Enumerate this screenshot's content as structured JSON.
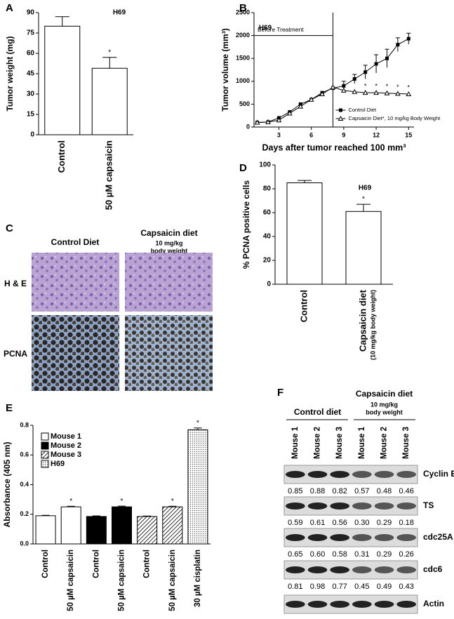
{
  "chart_data": [
    {
      "panel": "A",
      "type": "bar",
      "title": "H69",
      "y_label": "Tumor weight (mg)",
      "categories": [
        "Control",
        "50 µM capsaicin"
      ],
      "values": [
        80,
        49
      ],
      "errors": [
        7,
        8
      ],
      "markers": [
        null,
        "*"
      ],
      "color": "#ffffff",
      "ylim": [
        0,
        90
      ],
      "yticks": [
        0,
        15,
        30,
        45,
        60,
        75,
        90
      ]
    },
    {
      "panel": "B",
      "type": "line",
      "title": "H69",
      "y_label": "Tumor volume (mm³)",
      "x_label": "Days after tumor reached 100 mm³",
      "x": [
        1,
        2,
        3,
        4,
        5,
        6,
        7,
        8,
        9,
        10,
        11,
        12,
        13,
        14,
        15
      ],
      "series": [
        {
          "name": "Control Diet",
          "color": "#000000",
          "marker": "square",
          "values": [
            100,
            110,
            200,
            330,
            500,
            600,
            750,
            850,
            900,
            1050,
            1200,
            1380,
            1500,
            1800,
            1930
          ],
          "errors": [
            null,
            null,
            null,
            null,
            null,
            null,
            null,
            null,
            100,
            100,
            150,
            200,
            200,
            150,
            120
          ]
        },
        {
          "name": "Capsaicin Diet*, 10 mg/kg Body Weight",
          "color": "#000000",
          "marker": "triangle",
          "values": [
            100,
            110,
            150,
            300,
            450,
            600,
            720,
            870,
            800,
            770,
            750,
            750,
            740,
            730,
            720
          ],
          "markers": [
            null,
            null,
            null,
            null,
            null,
            null,
            null,
            null,
            null,
            null,
            "*",
            "*",
            "*",
            "*",
            "*"
          ]
        }
      ],
      "before_treatment": {
        "label": "Before Treatment",
        "x_end": 8,
        "y": 2000
      },
      "xlim": [
        0.7,
        15.5
      ],
      "xticks": [
        3,
        6,
        9,
        12,
        15
      ],
      "ylim": [
        0,
        2500
      ],
      "yticks": [
        0,
        500,
        1000,
        1500,
        2000,
        2500
      ]
    },
    {
      "panel": "D",
      "type": "bar",
      "title": "H69",
      "y_label": "% PCNA positive cells",
      "categories": [
        "Control",
        "Capsaicin diet"
      ],
      "category_sublabels": [
        null,
        "(10 mg/kg body weight)"
      ],
      "values": [
        85,
        61
      ],
      "errors": [
        2,
        6
      ],
      "markers": [
        null,
        "*"
      ],
      "color": "#ffffff",
      "ylim": [
        0,
        100
      ],
      "yticks": [
        0,
        20,
        40,
        60,
        80,
        100
      ]
    },
    {
      "panel": "E",
      "type": "bar",
      "y_label": "Absorbance (405 nm)",
      "categories": [
        "Control",
        "50 µM capsaicin",
        "Control",
        "50 µM capsaicin",
        "Control",
        "50 µM capsaicin",
        "30 µM cisplatin"
      ],
      "values": [
        0.19,
        0.25,
        0.185,
        0.25,
        0.185,
        0.25,
        0.77
      ],
      "errors": [
        0.003,
        0.004,
        0.004,
        0.005,
        0.003,
        0.004,
        0.012
      ],
      "markers": [
        null,
        "*",
        null,
        "*",
        null,
        "*",
        "*"
      ],
      "fills": [
        "#ffffff",
        "#ffffff",
        "#000000",
        "#000000",
        "url(#hatch)",
        "url(#hatch)",
        "url(#dots)"
      ],
      "legend": [
        {
          "name": "Mouse 1",
          "fill": "#ffffff"
        },
        {
          "name": "Mouse 2",
          "fill": "#000000"
        },
        {
          "name": "Mouse 3",
          "fill": "url(#hatch)"
        },
        {
          "name": "H69",
          "fill": "url(#dots)"
        }
      ],
      "ylim": [
        0,
        0.8
      ],
      "yticks": [
        {
          "value": 0,
          "label": "0.0"
        },
        0.2,
        0.4,
        0.6,
        0.8
      ]
    }
  ],
  "histology": {
    "panel": "C",
    "columns": [
      "Control Diet",
      "Capsaicin diet"
    ],
    "column_sublabels": [
      "10 mg/kg",
      "body weight"
    ],
    "rows": [
      "H & E",
      "PCNA"
    ]
  },
  "western_blot": {
    "panel": "F",
    "groups": [
      {
        "label": "Control diet"
      },
      {
        "label": "Capsaicin diet",
        "sublabels": [
          "10 mg/kg",
          "body weight"
        ]
      }
    ],
    "lanes": [
      "Mouse 1",
      "Mouse 2",
      "Mouse 3",
      "Mouse 1",
      "Mouse 2",
      "Mouse 3"
    ],
    "rows": [
      {
        "protein": "Cyclin E",
        "values": [
          "0.85",
          "0.88",
          "0.82",
          "0.57",
          "0.48",
          "0.46"
        ]
      },
      {
        "protein": "TS",
        "values": [
          "0.59",
          "0.61",
          "0.56",
          "0.30",
          "0.29",
          "0.18"
        ]
      },
      {
        "protein": "cdc25A",
        "values": [
          "0.65",
          "0.60",
          "0.58",
          "0.31",
          "0.29",
          "0.26"
        ]
      },
      {
        "protein": "cdc6",
        "values": [
          "0.81",
          "0.98",
          "0.77",
          "0.45",
          "0.49",
          "0.43"
        ]
      },
      {
        "protein": "Actin"
      }
    ]
  }
}
